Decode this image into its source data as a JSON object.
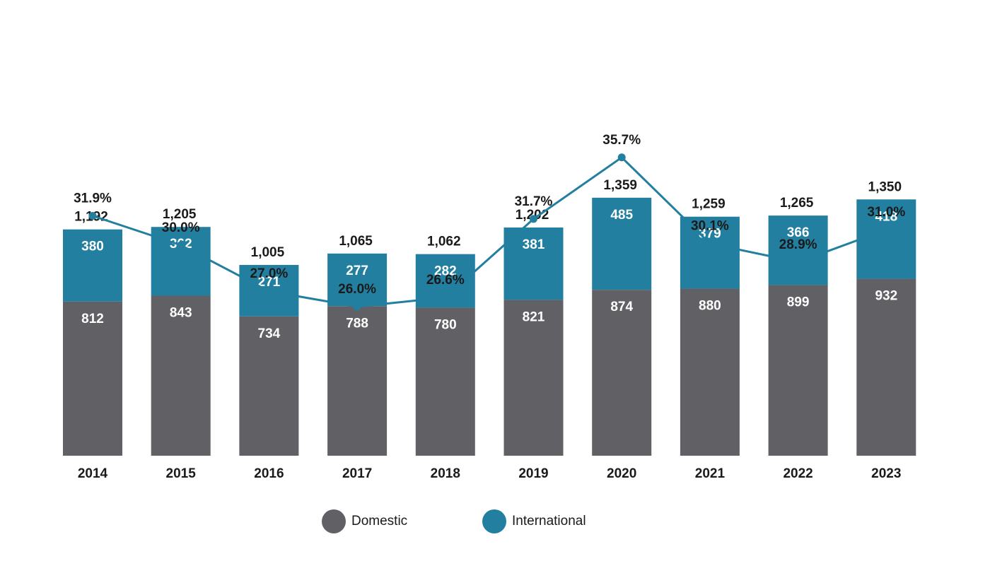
{
  "chart_data": {
    "type": "bar",
    "stacked": true,
    "categories": [
      "2014",
      "2015",
      "2016",
      "2017",
      "2018",
      "2019",
      "2020",
      "2021",
      "2022",
      "2023"
    ],
    "series": [
      {
        "name": "Domestic",
        "color": "#616165",
        "values": [
          812,
          843,
          734,
          788,
          780,
          821,
          874,
          880,
          899,
          932
        ]
      },
      {
        "name": "International",
        "color": "#227f9f",
        "values": [
          380,
          362,
          271,
          277,
          282,
          381,
          485,
          379,
          366,
          418
        ]
      }
    ],
    "totals": [
      "1,192",
      "1,205",
      "1,005",
      "1,065",
      "1,062",
      "1,202",
      "1,359",
      "1,259",
      "1,265",
      "1,350"
    ],
    "line": {
      "color": "#227f9f",
      "values": [
        31.9,
        30.0,
        27.0,
        26.0,
        26.6,
        31.7,
        35.7,
        30.1,
        28.9,
        31.0
      ],
      "labels": [
        "31.9%",
        "30.0%",
        "27.0%",
        "26.0%",
        "26.6%",
        "31.7%",
        "35.7%",
        "30.1%",
        "28.9%",
        "31.0%"
      ]
    },
    "legend_position": "bottom-center"
  },
  "legend": {
    "domestic_label": "Domestic",
    "international_label": "International"
  }
}
